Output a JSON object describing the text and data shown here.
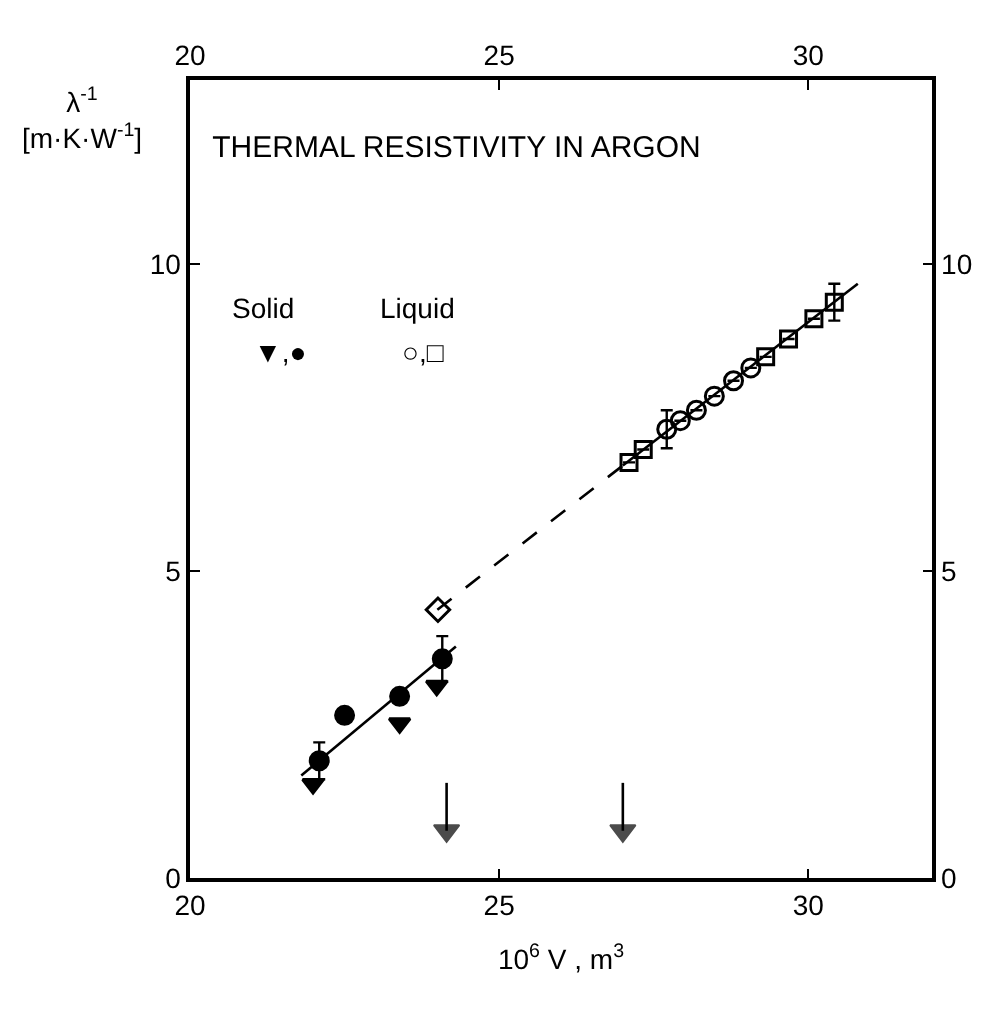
{
  "chart_data": {
    "type": "scatter",
    "title": "THERMAL RESISTIVITY IN ARGON",
    "xlabel": "10$^{6}$ V , m$^{3}$",
    "ylabel": "λ$^{-1}$ [m·K·W$^{-1}$]",
    "xlim": [
      20,
      32
    ],
    "xticks": [
      20,
      25,
      30
    ],
    "ylim": [
      0,
      13
    ],
    "yticks": [
      0,
      5,
      10
    ],
    "x2lim": [
      20,
      32
    ],
    "x2ticks": [
      20,
      25,
      30
    ],
    "y2lim": [
      0,
      13
    ],
    "y2ticks": [
      0,
      5,
      10
    ],
    "legend": false,
    "annotations": [
      "Solid",
      "Liquid",
      "▼,●",
      "○,□"
    ],
    "series": [
      {
        "marker": "triangle-down",
        "color": "#000000",
        "x": [
          21.99,
          23.39,
          23.99
        ],
        "values": [
          1.53,
          2.52,
          3.13
        ]
      },
      {
        "marker": "circle",
        "color": "#000000",
        "x": [
          22.09,
          22.5,
          23.39,
          24.08
        ],
        "values": [
          1.91,
          2.65,
          2.96,
          3.57
        ],
        "errors": [
          0.3,
          null,
          null,
          0.37
        ]
      },
      {
        "marker": "diamond-open",
        "color": "#000000",
        "x": [
          24.01
        ],
        "values": [
          4.37
        ]
      },
      {
        "marker": "circle-open",
        "color": "#000000",
        "x": [
          27.71,
          27.93,
          28.19,
          28.48,
          28.79,
          29.07
        ],
        "values": [
          7.31,
          7.45,
          7.62,
          7.85,
          8.1,
          8.31
        ],
        "errors": [
          0.31,
          null,
          null,
          null,
          null,
          null
        ]
      },
      {
        "marker": "square-open",
        "color": "#000000",
        "x": [
          27.1,
          27.33,
          29.31,
          29.68,
          30.09,
          30.42
        ],
        "values": [
          6.77,
          6.98,
          8.49,
          8.78,
          9.11,
          9.38
        ],
        "errors": [
          null,
          null,
          null,
          null,
          null,
          0.3
        ]
      },
      {
        "type": "line",
        "line_style": "solid",
        "marker": "triangle",
        "color": "#000000",
        "x": [
          24.15,
          24.15
        ],
        "values": [
          1.55,
          0.77
        ]
      },
      {
        "type": "line",
        "line_style": "solid",
        "marker": "triangle",
        "color": "#000000",
        "x": [
          27.0,
          27.0
        ],
        "values": [
          1.55,
          0.77
        ]
      },
      {
        "type": "line",
        "line_style": "solid",
        "color": "#000000",
        "x": [
          21.8,
          24.3
        ],
        "values": [
          1.67,
          3.77
        ]
      },
      {
        "type": "line",
        "line_style": "dashed",
        "color": "#000000",
        "x": [
          24.0,
          27.0
        ],
        "values": [
          4.37,
          6.72
        ]
      },
      {
        "type": "line",
        "line_style": "solid",
        "color": "#000000",
        "x": [
          27.0,
          30.8
        ],
        "values": [
          6.72,
          9.68
        ]
      }
    ]
  }
}
